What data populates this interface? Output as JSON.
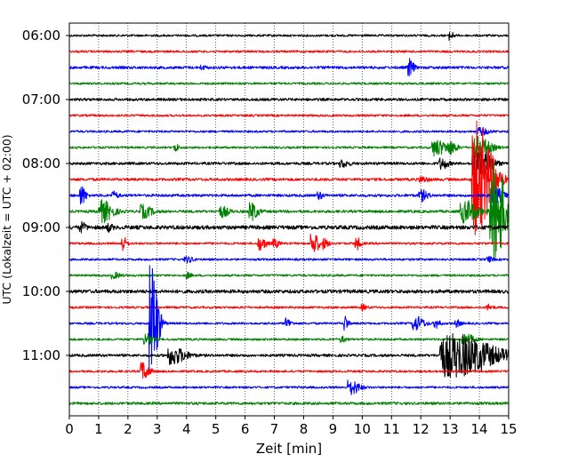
{
  "chart_data": {
    "type": "line",
    "title": "",
    "xlabel": "Zeit  [min]",
    "ylabel": "UTC (Lokalzeit = UTC + 02:00)",
    "xlim": [
      0,
      15
    ],
    "x_ticks": [
      "0",
      "1",
      "2",
      "3",
      "4",
      "5",
      "6",
      "7",
      "8",
      "9",
      "10",
      "11",
      "12",
      "13",
      "14",
      "15"
    ],
    "y_ticks": [
      "06:00",
      "07:00",
      "08:00",
      "09:00",
      "10:00",
      "11:00"
    ],
    "grid": "vertical dotted",
    "colors": [
      "#000000",
      "#ff0000",
      "#0000ff",
      "#008000"
    ],
    "traces": [
      {
        "start": "06:00",
        "color": "#000000",
        "noise": 1.2,
        "events": [
          [
            13.0,
            5,
            0.15
          ]
        ]
      },
      {
        "start": "06:15",
        "color": "#ff0000",
        "noise": 1.2,
        "events": []
      },
      {
        "start": "06:30",
        "color": "#0000ff",
        "noise": 1.5,
        "events": [
          [
            11.6,
            10,
            0.2
          ],
          [
            4.5,
            2,
            0.2
          ]
        ]
      },
      {
        "start": "06:45",
        "color": "#008000",
        "noise": 1.2,
        "events": []
      },
      {
        "start": "07:00",
        "color": "#000000",
        "noise": 1.5,
        "events": []
      },
      {
        "start": "07:15",
        "color": "#ff0000",
        "noise": 1.2,
        "events": []
      },
      {
        "start": "07:30",
        "color": "#0000ff",
        "noise": 1.2,
        "events": [
          [
            14.0,
            4,
            0.4
          ]
        ]
      },
      {
        "start": "07:45",
        "color": "#008000",
        "noise": 1.2,
        "events": [
          [
            3.6,
            5,
            0.15
          ],
          [
            12.5,
            9,
            0.5
          ],
          [
            13.0,
            6,
            0.3
          ],
          [
            13.9,
            12,
            0.6
          ]
        ]
      },
      {
        "start": "08:00",
        "color": "#000000",
        "noise": 1.5,
        "events": [
          [
            9.3,
            4,
            0.3
          ],
          [
            12.7,
            6,
            0.3
          ],
          [
            13.9,
            18,
            0.6
          ]
        ]
      },
      {
        "start": "08:15",
        "color": "#ff0000",
        "noise": 1.5,
        "events": [
          [
            13.9,
            65,
            0.7
          ],
          [
            12.0,
            3,
            0.3
          ]
        ]
      },
      {
        "start": "08:30",
        "color": "#0000ff",
        "noise": 1.5,
        "events": [
          [
            0.4,
            11,
            0.2
          ],
          [
            1.5,
            4,
            0.2
          ],
          [
            8.5,
            4,
            0.2
          ],
          [
            12.0,
            6,
            0.3
          ],
          [
            14.5,
            9,
            0.4
          ]
        ]
      },
      {
        "start": "08:45",
        "color": "#008000",
        "noise": 1.5,
        "events": [
          [
            1.1,
            12,
            0.5
          ],
          [
            2.5,
            7,
            0.4
          ],
          [
            5.2,
            6,
            0.3
          ],
          [
            6.2,
            10,
            0.3
          ],
          [
            13.5,
            12,
            0.6
          ],
          [
            14.5,
            55,
            0.6
          ],
          [
            15.0,
            8,
            0.2
          ]
        ]
      },
      {
        "start": "09:00",
        "color": "#000000",
        "noise": 2.2,
        "events": [
          [
            0.4,
            5,
            0.2
          ],
          [
            1.3,
            4,
            0.2
          ]
        ]
      },
      {
        "start": "09:15",
        "color": "#ff0000",
        "noise": 1.2,
        "events": [
          [
            1.8,
            9,
            0.2
          ],
          [
            6.5,
            7,
            0.3
          ],
          [
            7.0,
            5,
            0.2
          ],
          [
            8.3,
            12,
            0.3
          ],
          [
            8.7,
            5,
            0.2
          ],
          [
            9.8,
            7,
            0.2
          ]
        ]
      },
      {
        "start": "09:30",
        "color": "#0000ff",
        "noise": 1.2,
        "events": [
          [
            4.0,
            3,
            0.3
          ],
          [
            14.3,
            3,
            0.2
          ]
        ]
      },
      {
        "start": "09:45",
        "color": "#008000",
        "noise": 1.2,
        "events": [
          [
            1.5,
            3,
            0.3
          ],
          [
            4.0,
            3,
            0.2
          ]
        ]
      },
      {
        "start": "10:00",
        "color": "#000000",
        "noise": 2.0,
        "events": []
      },
      {
        "start": "10:15",
        "color": "#ff0000",
        "noise": 1.2,
        "events": [
          [
            10.0,
            3,
            0.2
          ],
          [
            14.3,
            3,
            0.2
          ]
        ]
      },
      {
        "start": "10:30",
        "color": "#0000ff",
        "noise": 1.2,
        "events": [
          [
            2.8,
            70,
            0.3
          ],
          [
            7.4,
            6,
            0.2
          ],
          [
            9.4,
            9,
            0.15
          ],
          [
            11.8,
            8,
            0.4
          ],
          [
            12.5,
            5,
            0.2
          ],
          [
            13.2,
            4,
            0.2
          ]
        ]
      },
      {
        "start": "10:45",
        "color": "#008000",
        "noise": 1.2,
        "events": [
          [
            2.6,
            7,
            0.3
          ],
          [
            9.3,
            3,
            0.2
          ],
          [
            13.5,
            6,
            0.4
          ]
        ]
      },
      {
        "start": "11:00",
        "color": "#000000",
        "noise": 1.5,
        "events": [
          [
            3.5,
            10,
            0.6
          ],
          [
            13.1,
            24,
            1.8
          ]
        ]
      },
      {
        "start": "11:15",
        "color": "#ff0000",
        "noise": 1.2,
        "events": [
          [
            2.5,
            10,
            0.3
          ]
        ]
      },
      {
        "start": "11:30",
        "color": "#0000ff",
        "noise": 1.2,
        "events": [
          [
            9.6,
            8,
            0.4
          ]
        ]
      },
      {
        "start": "11:45",
        "color": "#008000",
        "noise": 1.5,
        "events": []
      }
    ]
  }
}
